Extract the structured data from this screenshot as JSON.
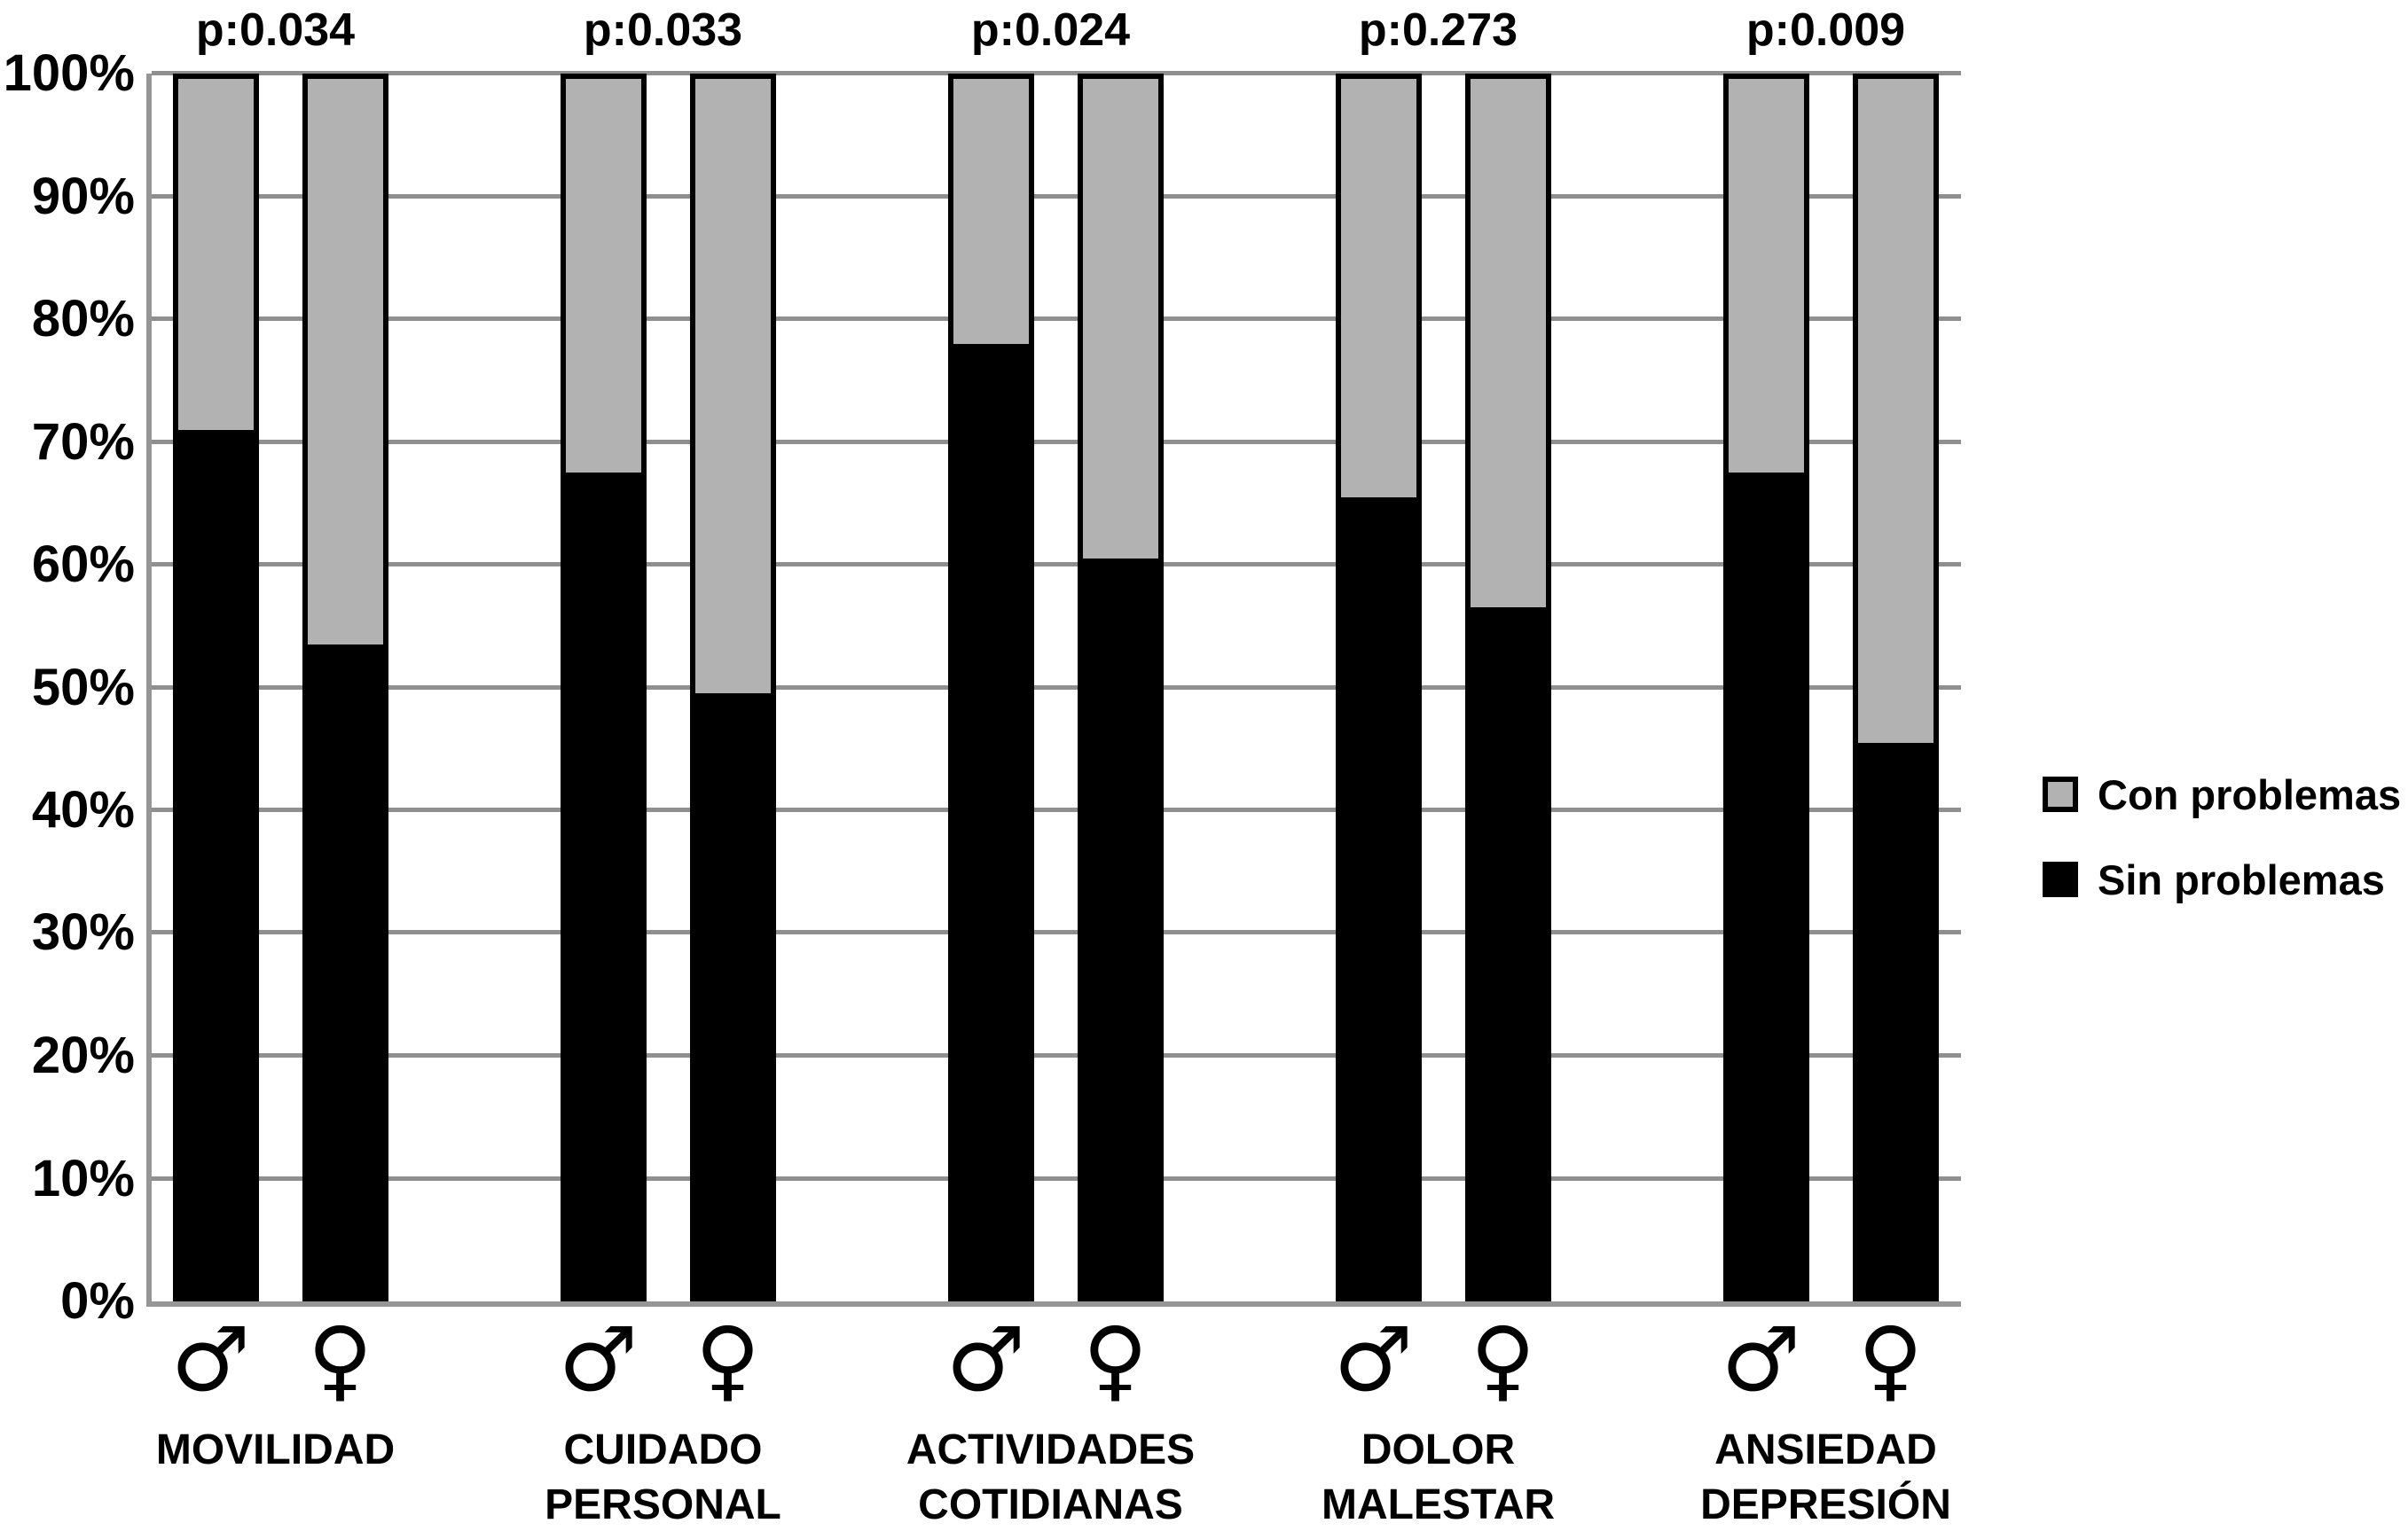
{
  "figure": {
    "background": "#ffffff",
    "bar_gray": "#b2b2b2",
    "bar_black": "#000000",
    "grid_color": "#8f8f8f",
    "axis_color": "#969696"
  },
  "y_axis": {
    "tick_labels": [
      "100%",
      "90%",
      "80%",
      "70%",
      "60%",
      "50%",
      "40%",
      "30%",
      "20%",
      "10%",
      "0%"
    ],
    "tick_values": [
      100,
      90,
      80,
      70,
      60,
      50,
      40,
      30,
      20,
      10,
      0
    ]
  },
  "legend": {
    "items": [
      {
        "label": "Con problemas",
        "color": "#b2b2b2"
      },
      {
        "label": "Sin problemas",
        "color": "#000000"
      }
    ]
  },
  "chart_data": {
    "type": "bar",
    "stacked": true,
    "unit": "%",
    "ylim": [
      0,
      100
    ],
    "grid": true,
    "legend_position": "right",
    "series_names": [
      "Sin problemas",
      "Con problemas"
    ],
    "groups": [
      {
        "category_lines": [
          "MOVILIDAD"
        ],
        "p_label": "p:0.034",
        "bars": [
          {
            "sex": "male",
            "symbol": "♂",
            "sin_problemas": 71,
            "con_problemas": 29
          },
          {
            "sex": "female",
            "symbol": "♀",
            "sin_problemas": 53.5,
            "con_problemas": 46.5
          }
        ]
      },
      {
        "category_lines": [
          "CUIDADO",
          "PERSONAL"
        ],
        "p_label": "p:0.033",
        "bars": [
          {
            "sex": "male",
            "symbol": "♂",
            "sin_problemas": 67.5,
            "con_problemas": 32.5
          },
          {
            "sex": "female",
            "symbol": "♀",
            "sin_problemas": 49.5,
            "con_problemas": 50.5
          }
        ]
      },
      {
        "category_lines": [
          "ACTIVIDADES",
          "COTIDIANAS"
        ],
        "p_label": "p:0.024",
        "bars": [
          {
            "sex": "male",
            "symbol": "♂",
            "sin_problemas": 78,
            "con_problemas": 22
          },
          {
            "sex": "female",
            "symbol": "♀",
            "sin_problemas": 60.5,
            "con_problemas": 39.5
          }
        ]
      },
      {
        "category_lines": [
          "DOLOR",
          "MALESTAR"
        ],
        "p_label": "p:0.273",
        "bars": [
          {
            "sex": "male",
            "symbol": "♂",
            "sin_problemas": 65.5,
            "con_problemas": 34.5
          },
          {
            "sex": "female",
            "symbol": "♀",
            "sin_problemas": 56.5,
            "con_problemas": 43.5
          }
        ]
      },
      {
        "category_lines": [
          "ANSIEDAD",
          "DEPRESIÓN"
        ],
        "p_label": "p:0.009",
        "bars": [
          {
            "sex": "male",
            "symbol": "♂",
            "sin_problemas": 67.5,
            "con_problemas": 32.5
          },
          {
            "sex": "female",
            "symbol": "♀",
            "sin_problemas": 45.5,
            "con_problemas": 54.5
          }
        ]
      }
    ]
  }
}
